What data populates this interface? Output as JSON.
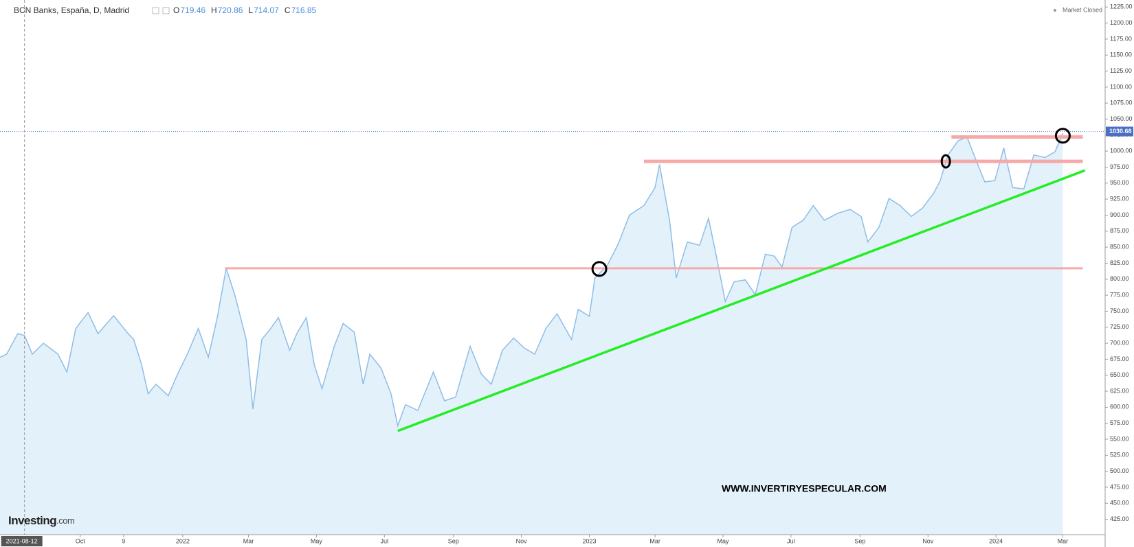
{
  "chart_data": {
    "type": "area",
    "title": "BCN Banks, España, D, Madrid",
    "ohlc": [
      {
        "label": "O",
        "value": "719.46"
      },
      {
        "label": "H",
        "value": "720.86"
      },
      {
        "label": "L",
        "value": "714.07"
      },
      {
        "label": "C",
        "value": "716.85"
      }
    ],
    "status": "Market Closed",
    "logo": {
      "main": "Investing",
      "suffix": ".com"
    },
    "watermark": "WWW.INVERTIRYESPECULAR.COM",
    "crosshair_date": "2021-08-12",
    "last_price": {
      "value": 1030.68,
      "label": "1030.68"
    },
    "x": [
      "2021-07-21",
      "2021-07-27",
      "2021-08-06",
      "2021-08-12",
      "2021-08-19",
      "2021-08-29",
      "2021-09-11",
      "2021-09-19",
      "2021-09-27",
      "2021-10-08",
      "2021-10-17",
      "2021-10-31",
      "2021-11-12",
      "2021-11-18",
      "2021-11-25",
      "2021-12-01",
      "2021-12-08",
      "2021-12-19",
      "2021-12-27",
      "2022-01-06",
      "2022-01-15",
      "2022-01-24",
      "2022-02-01",
      "2022-02-09",
      "2022-02-17",
      "2022-02-27",
      "2022-03-05",
      "2022-03-13",
      "2022-03-21",
      "2022-03-28",
      "2022-04-07",
      "2022-04-14",
      "2022-04-22",
      "2022-04-29",
      "2022-05-06",
      "2022-05-17",
      "2022-05-25",
      "2022-06-04",
      "2022-06-12",
      "2022-06-18",
      "2022-06-28",
      "2022-07-07",
      "2022-07-13",
      "2022-07-20",
      "2022-07-31",
      "2022-08-14",
      "2022-08-24",
      "2022-09-03",
      "2022-09-16",
      "2022-09-26",
      "2022-10-05",
      "2022-10-15",
      "2022-10-25",
      "2022-11-04",
      "2022-11-13",
      "2022-11-23",
      "2022-12-03",
      "2022-12-16",
      "2022-12-22",
      "2023-01-01",
      "2023-01-06",
      "2023-01-17",
      "2023-01-27",
      "2023-02-06",
      "2023-02-19",
      "2023-03-01",
      "2023-03-05",
      "2023-03-14",
      "2023-03-20",
      "2023-03-30",
      "2023-04-10",
      "2023-04-18",
      "2023-04-25",
      "2023-05-03",
      "2023-05-11",
      "2023-05-21",
      "2023-05-30",
      "2023-06-08",
      "2023-06-16",
      "2023-06-23",
      "2023-07-02",
      "2023-07-12",
      "2023-07-21",
      "2023-07-31",
      "2023-08-12",
      "2023-08-23",
      "2023-09-02",
      "2023-09-08",
      "2023-09-18",
      "2023-09-27",
      "2023-10-07",
      "2023-10-17",
      "2023-10-27",
      "2023-11-06",
      "2023-11-12",
      "2023-11-19",
      "2023-11-28",
      "2023-12-06",
      "2023-12-15",
      "2023-12-22",
      "2023-12-31",
      "2024-01-08",
      "2024-01-16",
      "2024-01-26",
      "2024-02-04",
      "2024-02-14",
      "2024-02-23",
      "2024-03-01"
    ],
    "series": [
      {
        "color": "#8fbde6",
        "fill": "#e3f1fb",
        "values": [
          678,
          683,
          715,
          712,
          683,
          700,
          683,
          655,
          723,
          748,
          715,
          743,
          717,
          706,
          667,
          621,
          636,
          618,
          650,
          686,
          723,
          678,
          740,
          817,
          774,
          706,
          597,
          706,
          723,
          740,
          689,
          717,
          740,
          667,
          629,
          695,
          731,
          717,
          636,
          683,
          661,
          621,
          571,
          604,
          595,
          655,
          610,
          616,
          695,
          652,
          636,
          689,
          708,
          692,
          683,
          723,
          746,
          706,
          753,
          742,
          802,
          821,
          855,
          900,
          915,
          943,
          979,
          892,
          802,
          858,
          853,
          895,
          836,
          765,
          796,
          799,
          776,
          839,
          836,
          819,
          881,
          892,
          915,
          892,
          903,
          909,
          898,
          858,
          881,
          926,
          915,
          898,
          911,
          934,
          954,
          994,
          1016,
          1022,
          982,
          952,
          954,
          1005,
          943,
          941,
          994,
          990,
          999,
          1028
        ]
      }
    ],
    "xlim": [
      "2021-07-21",
      "2024-04-08"
    ],
    "xticks": [
      {
        "value": "2021-10-01",
        "label": "Oct"
      },
      {
        "value": "2021-11-09",
        "label": "9"
      },
      {
        "value": "2022-01-01",
        "label": "2022"
      },
      {
        "value": "2022-03-01",
        "label": "Mar"
      },
      {
        "value": "2022-05-01",
        "label": "May"
      },
      {
        "value": "2022-07-01",
        "label": "Jul"
      },
      {
        "value": "2022-09-01",
        "label": "Sep"
      },
      {
        "value": "2022-11-01",
        "label": "Nov"
      },
      {
        "value": "2023-01-01",
        "label": "2023"
      },
      {
        "value": "2023-03-01",
        "label": "Mar"
      },
      {
        "value": "2023-05-01",
        "label": "May"
      },
      {
        "value": "2023-07-01",
        "label": "Jul"
      },
      {
        "value": "2023-09-01",
        "label": "Sep"
      },
      {
        "value": "2023-11-01",
        "label": "Nov"
      },
      {
        "value": "2024-01-01",
        "label": "2024"
      },
      {
        "value": "2024-03-01",
        "label": "Mar"
      }
    ],
    "ylim": [
      401,
      1236
    ],
    "yticks": [
      {
        "value": 425,
        "label": "425.00"
      },
      {
        "value": 450,
        "label": "450.00"
      },
      {
        "value": 475,
        "label": "475.00"
      },
      {
        "value": 500,
        "label": "500.00"
      },
      {
        "value": 525,
        "label": "525.00"
      },
      {
        "value": 550,
        "label": "550.00"
      },
      {
        "value": 575,
        "label": "575.00"
      },
      {
        "value": 600,
        "label": "600.00"
      },
      {
        "value": 625,
        "label": "625.00"
      },
      {
        "value": 650,
        "label": "650.00"
      },
      {
        "value": 675,
        "label": "675.00"
      },
      {
        "value": 700,
        "label": "700.00"
      },
      {
        "value": 725,
        "label": "725.00"
      },
      {
        "value": 750,
        "label": "750.00"
      },
      {
        "value": 775,
        "label": "775.00"
      },
      {
        "value": 800,
        "label": "800.00"
      },
      {
        "value": 825,
        "label": "825.00"
      },
      {
        "value": 850,
        "label": "850.00"
      },
      {
        "value": 875,
        "label": "875.00"
      },
      {
        "value": 900,
        "label": "900.00"
      },
      {
        "value": 925,
        "label": "925.00"
      },
      {
        "value": 950,
        "label": "950.00"
      },
      {
        "value": 975,
        "label": "975.00"
      },
      {
        "value": 1000,
        "label": "1000.00"
      },
      {
        "value": 1025,
        "label": "1025.00"
      },
      {
        "value": 1050,
        "label": "1050.00"
      },
      {
        "value": 1075,
        "label": "1075.00"
      },
      {
        "value": 1100,
        "label": "1100.00"
      },
      {
        "value": 1125,
        "label": "1125.00"
      },
      {
        "value": 1150,
        "label": "1150.00"
      },
      {
        "value": 1175,
        "label": "1175.00"
      },
      {
        "value": 1200,
        "label": "1200.00"
      },
      {
        "value": 1225,
        "label": "1225.00"
      }
    ],
    "annotations": {
      "levels": [
        {
          "from": "2022-02-08",
          "to": "2024-03-19",
          "value": 817,
          "color": "#f6a9a9"
        },
        {
          "from": "2023-02-19",
          "to": "2024-03-19",
          "value": 984,
          "color": "#f6a9a9"
        },
        {
          "from": "2023-11-22",
          "to": "2024-03-19",
          "value": 1022,
          "color": "#f6a9a9"
        }
      ],
      "trendline": {
        "x": [
          "2022-07-13",
          "2024-03-21"
        ],
        "values": [
          563,
          970
        ],
        "color": "#22ee22"
      },
      "markers": [
        {
          "x": "2023-01-10",
          "value": 816
        },
        {
          "x": "2023-11-17",
          "value": 984
        },
        {
          "x": "2024-03-01",
          "value": 1024
        }
      ]
    }
  }
}
